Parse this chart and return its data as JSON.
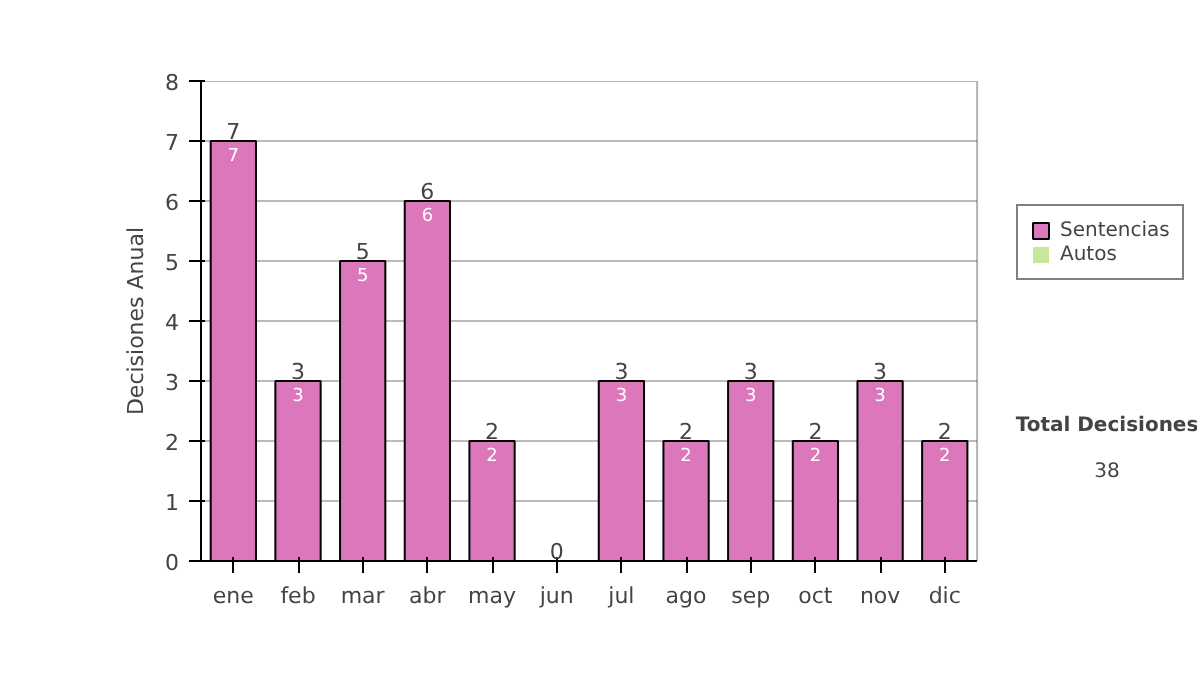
{
  "chart_data": {
    "type": "bar",
    "stacked": true,
    "ylabel": "Decisiones Anual",
    "categories": [
      "ene",
      "feb",
      "mar",
      "abr",
      "may",
      "jun",
      "jul",
      "ago",
      "sep",
      "oct",
      "nov",
      "dic"
    ],
    "series": [
      {
        "name": "Sentencias",
        "color": "#dd77bb",
        "values": [
          7,
          3,
          5,
          6,
          2,
          0,
          3,
          2,
          3,
          2,
          3,
          2
        ],
        "value_labels": [
          "7",
          "3",
          "5",
          "6",
          "2",
          null,
          "3",
          "2",
          "3",
          "2",
          "3",
          "2"
        ]
      },
      {
        "name": "Autos",
        "color": "#cce699",
        "values": [
          0,
          0,
          0,
          0,
          0,
          0,
          0,
          0,
          0,
          0,
          0,
          0
        ]
      }
    ],
    "totals": [
      "7",
      "3",
      "5",
      "6",
      "2",
      "0",
      "3",
      "2",
      "3",
      "2",
      "3",
      "2"
    ],
    "ylim": [
      0,
      8
    ],
    "yticks": [
      0,
      1,
      2,
      3,
      4,
      5,
      6,
      7,
      8
    ],
    "grid": "y",
    "legend": "right",
    "annotations": [
      "Total Decisiones",
      "38"
    ]
  }
}
